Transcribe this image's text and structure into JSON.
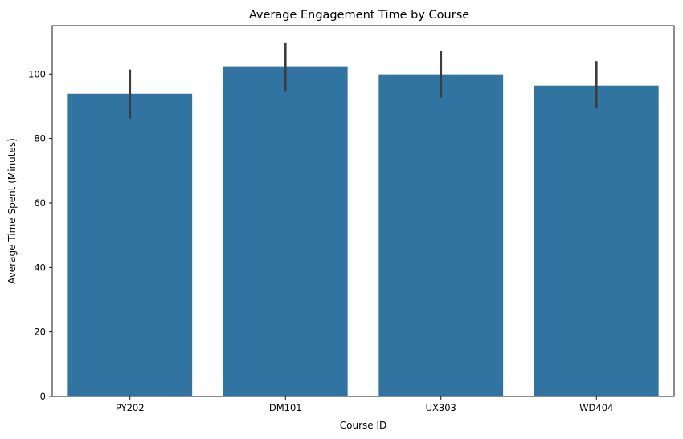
{
  "chart_data": {
    "type": "bar",
    "title": "Average Engagement Time by Course",
    "xlabel": "Course ID",
    "ylabel": "Average Time Spent (Minutes)",
    "categories": [
      "PY202",
      "DM101",
      "UX303",
      "WD404"
    ],
    "values": [
      93.9,
      102.4,
      99.9,
      96.4
    ],
    "error_low": [
      86.2,
      94.5,
      92.7,
      89.3
    ],
    "error_high": [
      101.4,
      109.8,
      107.1,
      104.0
    ],
    "ylim": [
      0,
      115
    ],
    "yticks": [
      0,
      20,
      40,
      60,
      80,
      100
    ],
    "bar_color": "#3274a1",
    "error_color": "#3d3d3d",
    "grid": false,
    "legend": "none"
  }
}
